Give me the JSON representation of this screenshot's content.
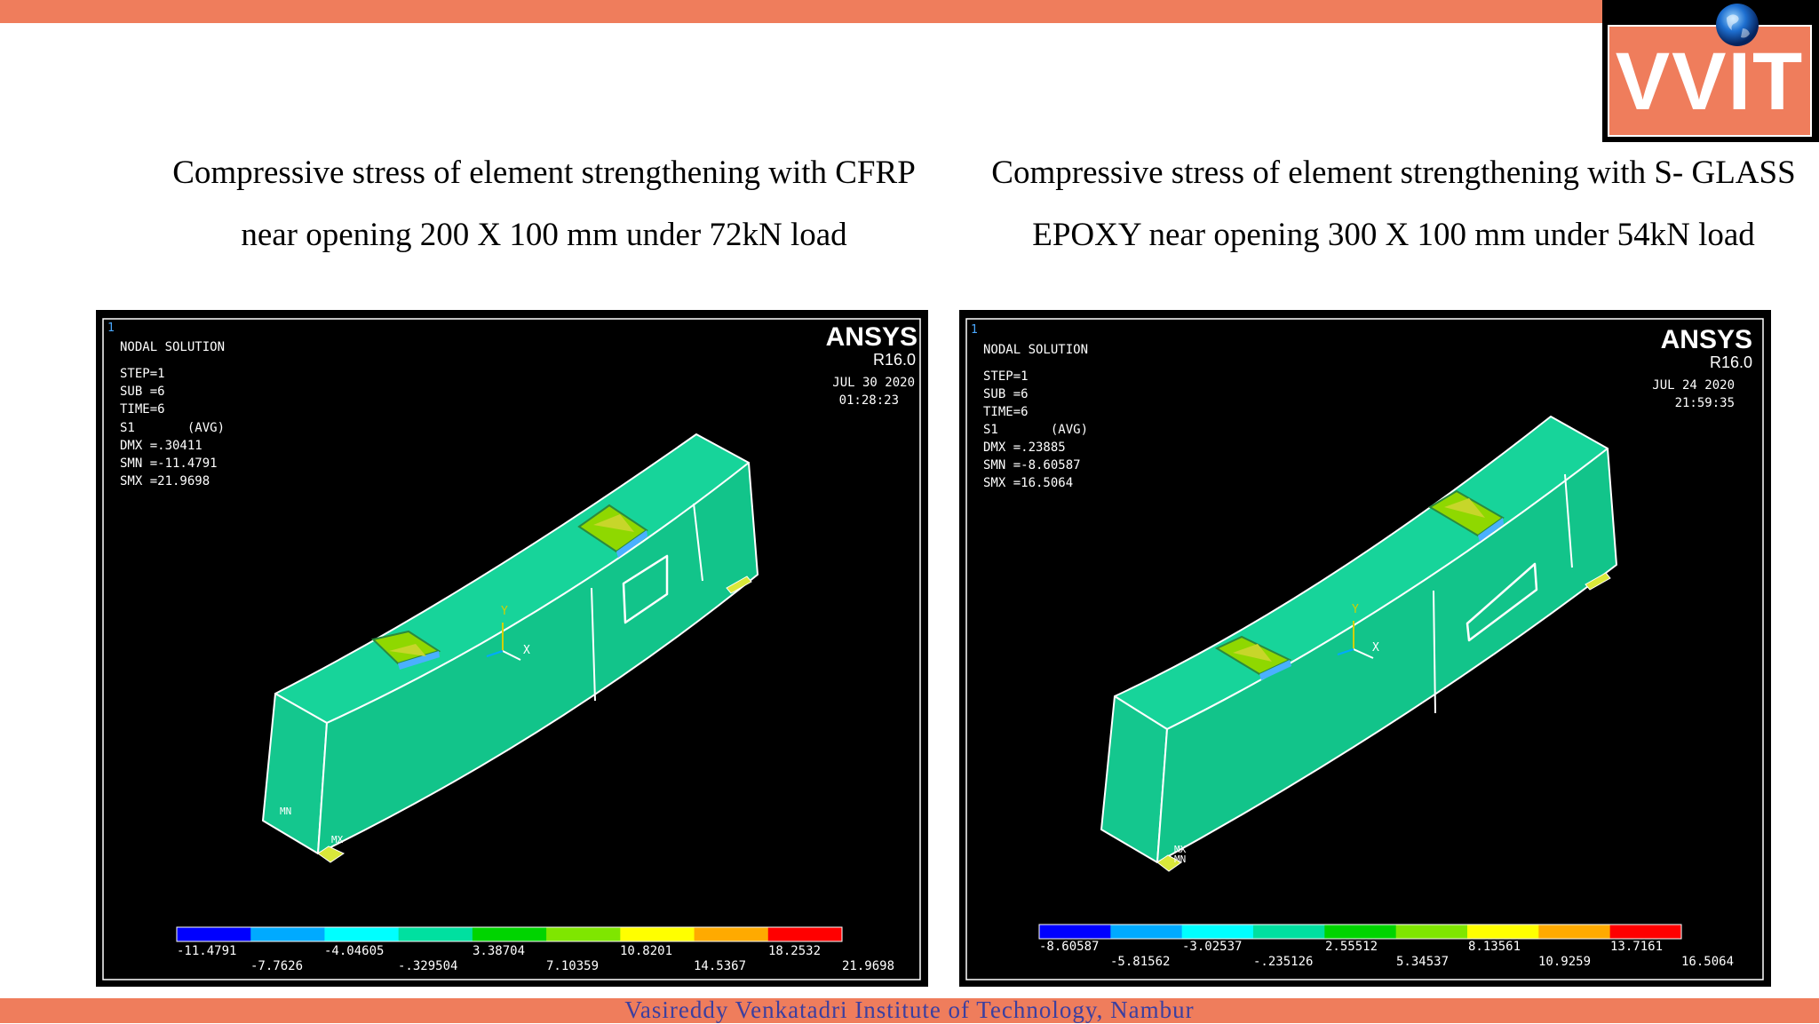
{
  "header": {
    "logo_text": "VVIT",
    "logo_icon": "globe-icon"
  },
  "captions": {
    "left_line1": "Compressive stress of element strengthening with CFRP",
    "left_line2": "near opening 200 X 100 mm under 72kN load",
    "right_line1": "Compressive stress of element strengthening with S- GLASS",
    "right_line2": "EPOXY near opening 300 X 100 mm under 54kN load"
  },
  "panels": [
    {
      "window_number": "1",
      "title": "NODAL SOLUTION",
      "step": "STEP=1",
      "sub": "SUB =6",
      "time": "TIME=6",
      "s1": "S1       (AVG)",
      "dmx": "DMX =.30411",
      "smn": "SMN =-11.4791",
      "smx": "SMX =21.9698",
      "brand": "ANSYS",
      "version": "R16.0",
      "date": "JUL 30 2020",
      "clock": "01:28:23",
      "axis_y": "Y",
      "axis_x": "X",
      "label_mn": "MN",
      "label_mx": "MX",
      "legend_top": [
        "-11.4791",
        "-4.04605",
        "3.38704",
        "10.8201",
        "18.2532"
      ],
      "legend_bottom": [
        "-7.7626",
        "-.329504",
        "7.10359",
        "14.5367",
        "21.9698"
      ]
    },
    {
      "window_number": "1",
      "title": "NODAL SOLUTION",
      "step": "STEP=1",
      "sub": "SUB =6",
      "time": "TIME=6",
      "s1": "S1       (AVG)",
      "dmx": "DMX =.23885",
      "smn": "SMN =-8.60587",
      "smx": "SMX =16.5064",
      "brand": "ANSYS",
      "version": "R16.0",
      "date": "JUL 24 2020",
      "clock": "21:59:35",
      "axis_y": "Y",
      "axis_x": "X",
      "label_mn": "MN",
      "label_mx": "MX",
      "legend_top": [
        "-8.60587",
        "-3.02537",
        "2.55512",
        "8.13561",
        "13.7161"
      ],
      "legend_bottom": [
        "-5.81562",
        "-.235126",
        "5.34537",
        "10.9259",
        "16.5064"
      ]
    }
  ],
  "legend_colors": [
    "#0000ff",
    "#00aaff",
    "#00ffff",
    "#00e0a0",
    "#00d400",
    "#7fe600",
    "#ffff00",
    "#ffaa00",
    "#ff0000"
  ],
  "footer": {
    "institute": "Vasireddy Venkatadri Institute of Technology, Nambur"
  }
}
